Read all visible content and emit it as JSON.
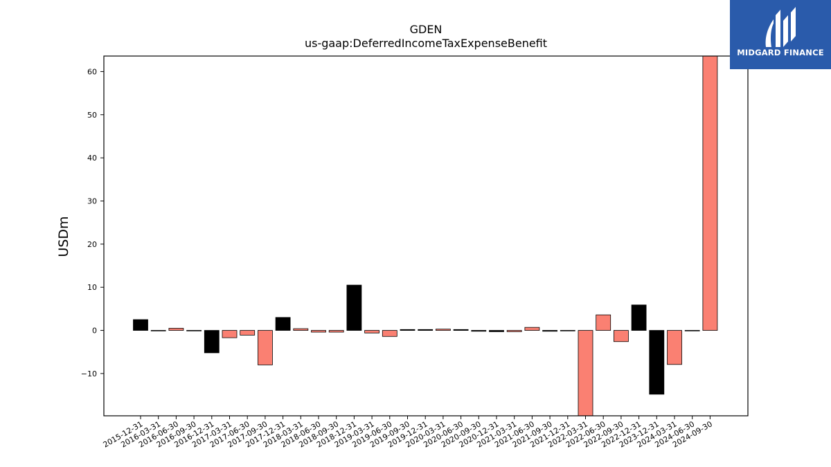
{
  "brand": {
    "name": "MIDGARD FINANCE",
    "color": "#2a5bab"
  },
  "colors": {
    "positive": "#000000",
    "negative": "#fa8072"
  },
  "chart_data": {
    "type": "bar",
    "title": "GDEN",
    "subtitle": "us-gaap:DeferredIncomeTaxExpenseBenefit",
    "xlabel": "",
    "ylabel": "USDm",
    "ylim": [
      -19.8,
      63.6
    ],
    "yticks": [
      -10,
      0,
      10,
      20,
      30,
      40,
      50,
      60
    ],
    "grid": false,
    "categories": [
      "2015-12-31",
      "2016-03-31",
      "2016-06-30",
      "2016-09-30",
      "2016-12-31",
      "2017-03-31",
      "2017-06-30",
      "2017-09-30",
      "2017-12-31",
      "2018-03-31",
      "2018-06-30",
      "2018-09-30",
      "2018-12-31",
      "2019-03-31",
      "2019-06-30",
      "2019-09-30",
      "2019-12-31",
      "2020-03-31",
      "2020-06-30",
      "2020-09-30",
      "2020-12-31",
      "2021-03-31",
      "2021-06-30",
      "2021-09-30",
      "2021-12-31",
      "2022-03-31",
      "2022-06-30",
      "2022-09-30",
      "2022-12-31",
      "2023-12-31",
      "2024-03-31",
      "2024-06-30",
      "2024-09-30"
    ],
    "values": [
      2.5,
      -0.1,
      0.5,
      -0.1,
      -5.2,
      -1.7,
      -1.1,
      -8.0,
      3.0,
      0.4,
      -0.4,
      -0.4,
      10.5,
      -0.6,
      -1.4,
      0.2,
      0.2,
      0.3,
      0.2,
      -0.2,
      -0.3,
      -0.3,
      0.7,
      -0.2,
      -0.1,
      -19.8,
      3.6,
      -2.6,
      5.9,
      -14.8,
      -7.9,
      -0.1,
      63.6
    ],
    "bar_colors": [
      "black",
      "black",
      "salmon",
      "black",
      "black",
      "salmon",
      "salmon",
      "salmon",
      "black",
      "salmon",
      "salmon",
      "salmon",
      "black",
      "salmon",
      "salmon",
      "black",
      "black",
      "salmon",
      "black",
      "black",
      "black",
      "salmon",
      "salmon",
      "black",
      "black",
      "salmon",
      "salmon",
      "salmon",
      "black",
      "black",
      "salmon",
      "black",
      "salmon"
    ]
  }
}
